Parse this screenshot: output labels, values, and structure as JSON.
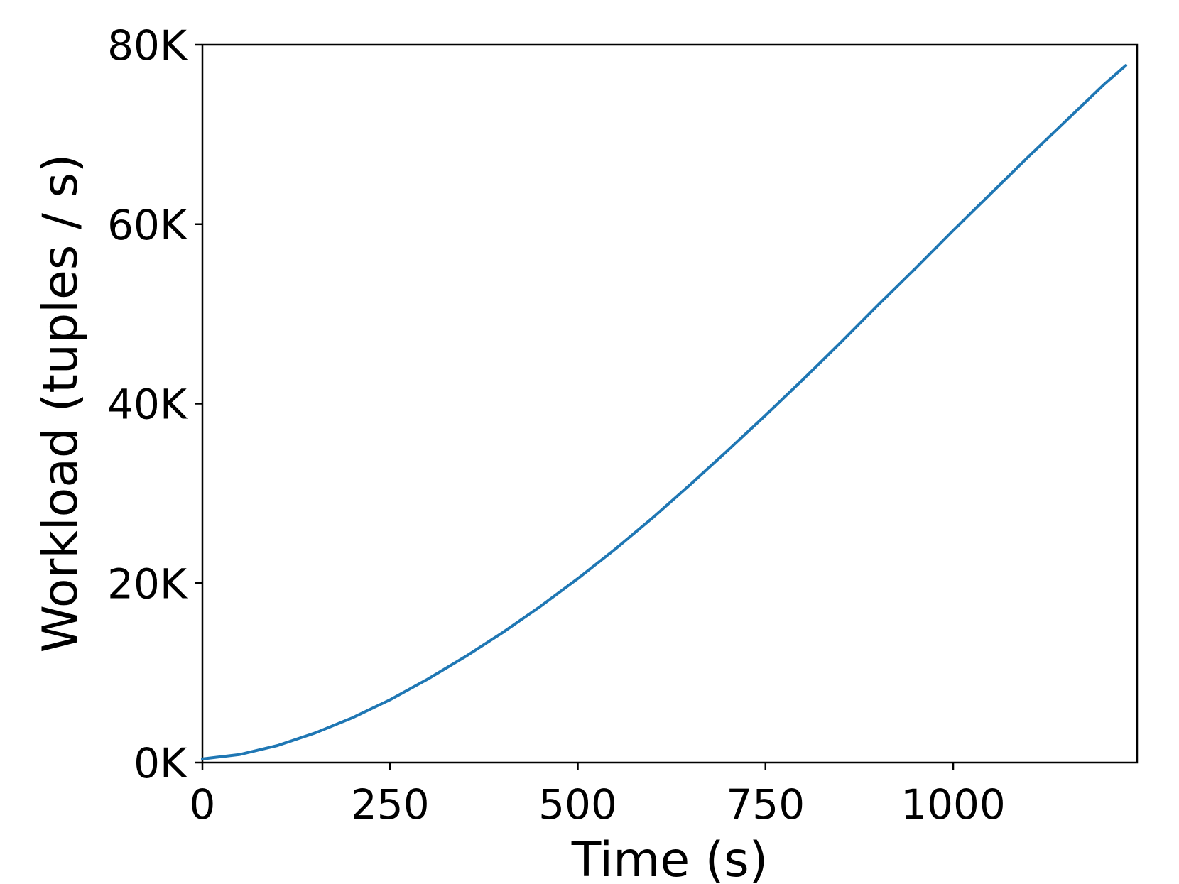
{
  "chart_data": {
    "type": "line",
    "title": "",
    "xlabel": "Time (s)",
    "ylabel": "Workload (tuples / s)",
    "xlim": [
      0,
      1245
    ],
    "ylim": [
      0,
      80000
    ],
    "x_ticks": [
      {
        "value": 0,
        "label": "0"
      },
      {
        "value": 250,
        "label": "250"
      },
      {
        "value": 500,
        "label": "500"
      },
      {
        "value": 750,
        "label": "750"
      },
      {
        "value": 1000,
        "label": "1000"
      }
    ],
    "y_ticks": [
      {
        "value": 0,
        "label": "0K"
      },
      {
        "value": 20000,
        "label": "20K"
      },
      {
        "value": 40000,
        "label": "40K"
      },
      {
        "value": 60000,
        "label": "60K"
      },
      {
        "value": 80000,
        "label": "80K"
      }
    ],
    "grid": false,
    "legend": "none",
    "series": [
      {
        "color": "#1f77b4",
        "x": [
          0,
          50,
          100,
          150,
          200,
          250,
          300,
          350,
          400,
          450,
          500,
          550,
          600,
          650,
          700,
          750,
          800,
          850,
          900,
          950,
          1000,
          1050,
          1100,
          1150,
          1200,
          1230
        ],
        "y": [
          400,
          900,
          1900,
          3300,
          5000,
          7000,
          9300,
          11800,
          14500,
          17400,
          20500,
          23800,
          27300,
          31000,
          34800,
          38700,
          42700,
          46800,
          51000,
          55100,
          59300,
          63400,
          67500,
          71500,
          75500,
          77700
        ]
      }
    ]
  }
}
